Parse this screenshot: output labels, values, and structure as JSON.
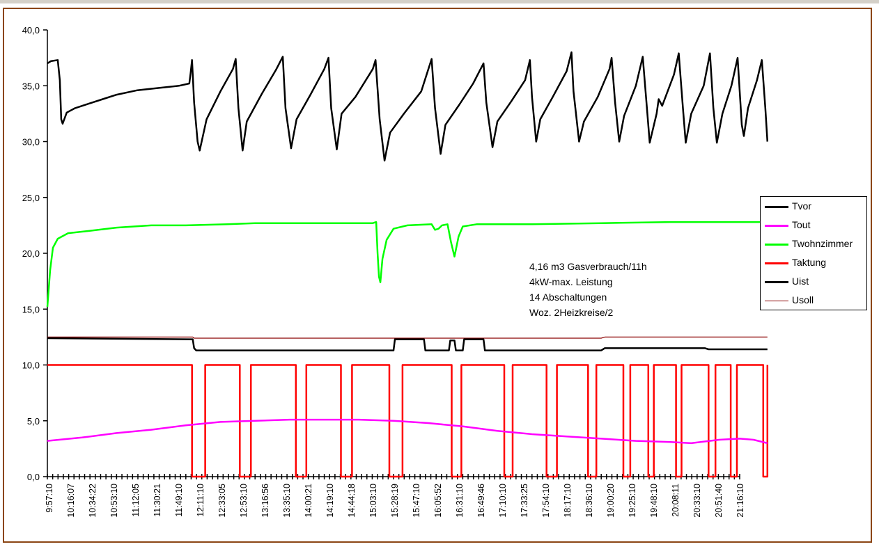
{
  "chart_data": {
    "type": "line",
    "ylim": [
      0,
      40
    ],
    "y_ticks": [
      "0,0",
      "5,0",
      "10,0",
      "15,0",
      "20,0",
      "25,0",
      "30,0",
      "35,0",
      "40,0"
    ],
    "x_tick_labels": [
      "9:57:10",
      "10:16:07",
      "10:34:22",
      "10:53:10",
      "11:12:05",
      "11:30:21",
      "11:49:10",
      "12:11:10",
      "12:33:05",
      "12:53:10",
      "13:16:56",
      "13:35:10",
      "14:00:21",
      "14:19:10",
      "14:44:18",
      "15:03:10",
      "15:28:19",
      "15:47:10",
      "16:05:52",
      "16:31:10",
      "16:49:46",
      "17:10:10",
      "17:33:25",
      "17:54:10",
      "18:17:10",
      "18:36:10",
      "19:00:20",
      "19:25:10",
      "19:48:10",
      "20:08:11",
      "20:33:10",
      "20:51:40",
      "21:16:10"
    ],
    "x_range": [
      0,
      1000
    ],
    "grid": false,
    "legend_position": "right",
    "series": [
      {
        "name": "Tvor",
        "color": "#000000",
        "points": [
          [
            0,
            37.0
          ],
          [
            5,
            37.2
          ],
          [
            15,
            37.3
          ],
          [
            18,
            35.5
          ],
          [
            20,
            32.0
          ],
          [
            22,
            31.6
          ],
          [
            28,
            32.6
          ],
          [
            40,
            33.0
          ],
          [
            60,
            33.4
          ],
          [
            80,
            33.8
          ],
          [
            100,
            34.2
          ],
          [
            130,
            34.6
          ],
          [
            160,
            34.8
          ],
          [
            190,
            35.0
          ],
          [
            205,
            35.2
          ],
          [
            207,
            36.2
          ],
          [
            209,
            37.3
          ],
          [
            212,
            33.5
          ],
          [
            217,
            30.0
          ],
          [
            220,
            29.2
          ],
          [
            230,
            32.0
          ],
          [
            250,
            34.5
          ],
          [
            268,
            36.5
          ],
          [
            272,
            37.4
          ],
          [
            276,
            33.0
          ],
          [
            282,
            29.2
          ],
          [
            288,
            31.8
          ],
          [
            310,
            34.3
          ],
          [
            330,
            36.4
          ],
          [
            340,
            37.6
          ],
          [
            344,
            33.0
          ],
          [
            352,
            29.4
          ],
          [
            360,
            32.0
          ],
          [
            380,
            34.2
          ],
          [
            400,
            36.5
          ],
          [
            406,
            37.5
          ],
          [
            410,
            33.0
          ],
          [
            418,
            29.3
          ],
          [
            425,
            32.5
          ],
          [
            445,
            34.0
          ],
          [
            470,
            36.5
          ],
          [
            474,
            37.3
          ],
          [
            480,
            32.0
          ],
          [
            487,
            28.3
          ],
          [
            495,
            30.8
          ],
          [
            515,
            32.5
          ],
          [
            540,
            34.5
          ],
          [
            555,
            37.4
          ],
          [
            560,
            33.0
          ],
          [
            568,
            28.9
          ],
          [
            575,
            31.5
          ],
          [
            595,
            33.3
          ],
          [
            615,
            35.2
          ],
          [
            630,
            37.0
          ],
          [
            634,
            33.5
          ],
          [
            643,
            29.5
          ],
          [
            650,
            31.8
          ],
          [
            670,
            33.6
          ],
          [
            690,
            35.5
          ],
          [
            697,
            37.3
          ],
          [
            700,
            34.0
          ],
          [
            706,
            30.0
          ],
          [
            712,
            32.0
          ],
          [
            730,
            34.0
          ],
          [
            750,
            36.3
          ],
          [
            757,
            38.0
          ],
          [
            760,
            34.5
          ],
          [
            768,
            30.0
          ],
          [
            775,
            31.8
          ],
          [
            795,
            34.0
          ],
          [
            812,
            36.5
          ],
          [
            815,
            37.5
          ],
          [
            820,
            33.5
          ],
          [
            826,
            30.0
          ],
          [
            833,
            32.3
          ],
          [
            850,
            35.0
          ],
          [
            860,
            37.6
          ],
          [
            866,
            33.0
          ],
          [
            870,
            29.9
          ],
          [
            880,
            32.5
          ],
          [
            883,
            33.8
          ],
          [
            888,
            33.2
          ],
          [
            905,
            36.0
          ],
          [
            912,
            37.9
          ],
          [
            918,
            33.0
          ],
          [
            922,
            29.9
          ],
          [
            930,
            32.5
          ],
          [
            948,
            35.0
          ],
          [
            957,
            37.9
          ],
          [
            962,
            33.0
          ],
          [
            967,
            29.9
          ],
          [
            975,
            32.5
          ],
          [
            988,
            35.0
          ],
          [
            997,
            37.5
          ],
          [
            1000,
            34.5
          ],
          [
            1003,
            31.5
          ],
          [
            1006,
            30.5
          ],
          [
            1012,
            33.0
          ],
          [
            1025,
            35.5
          ],
          [
            1032,
            37.3
          ],
          [
            1037,
            33.0
          ],
          [
            1040,
            30.0
          ]
        ]
      },
      {
        "name": "Tout",
        "color": "#ff00ff",
        "points": [
          [
            0,
            3.2
          ],
          [
            50,
            3.5
          ],
          [
            100,
            3.9
          ],
          [
            150,
            4.2
          ],
          [
            200,
            4.6
          ],
          [
            250,
            4.9
          ],
          [
            300,
            5.0
          ],
          [
            350,
            5.1
          ],
          [
            400,
            5.1
          ],
          [
            450,
            5.1
          ],
          [
            500,
            5.0
          ],
          [
            550,
            4.8
          ],
          [
            600,
            4.5
          ],
          [
            650,
            4.1
          ],
          [
            700,
            3.8
          ],
          [
            750,
            3.6
          ],
          [
            800,
            3.4
          ],
          [
            850,
            3.2
          ],
          [
            900,
            3.1
          ],
          [
            930,
            3.0
          ],
          [
            970,
            3.3
          ],
          [
            1000,
            3.4
          ],
          [
            1020,
            3.3
          ],
          [
            1040,
            3.0
          ]
        ]
      },
      {
        "name": "Twohnzimmer",
        "color": "#00ff00",
        "points": [
          [
            0,
            15.2
          ],
          [
            4,
            18.5
          ],
          [
            8,
            20.5
          ],
          [
            15,
            21.3
          ],
          [
            30,
            21.8
          ],
          [
            60,
            22.0
          ],
          [
            100,
            22.3
          ],
          [
            150,
            22.5
          ],
          [
            200,
            22.5
          ],
          [
            260,
            22.6
          ],
          [
            300,
            22.7
          ],
          [
            400,
            22.7
          ],
          [
            470,
            22.7
          ],
          [
            475,
            22.8
          ],
          [
            477,
            20.0
          ],
          [
            479,
            17.9
          ],
          [
            481,
            17.4
          ],
          [
            484,
            19.5
          ],
          [
            490,
            21.2
          ],
          [
            500,
            22.2
          ],
          [
            520,
            22.5
          ],
          [
            555,
            22.6
          ],
          [
            560,
            22.1
          ],
          [
            565,
            22.2
          ],
          [
            570,
            22.5
          ],
          [
            578,
            22.6
          ],
          [
            583,
            21.0
          ],
          [
            588,
            19.7
          ],
          [
            594,
            21.5
          ],
          [
            600,
            22.4
          ],
          [
            620,
            22.6
          ],
          [
            700,
            22.6
          ],
          [
            800,
            22.7
          ],
          [
            900,
            22.8
          ],
          [
            1000,
            22.8
          ],
          [
            1040,
            22.8
          ]
        ]
      },
      {
        "name": "Taktung",
        "color": "#ff0000",
        "points": [
          [
            0,
            10
          ],
          [
            209,
            10
          ],
          [
            209,
            0
          ],
          [
            228,
            0
          ],
          [
            228,
            10
          ],
          [
            278,
            10
          ],
          [
            278,
            0
          ],
          [
            294,
            0
          ],
          [
            294,
            10
          ],
          [
            359,
            10
          ],
          [
            359,
            0
          ],
          [
            374,
            0
          ],
          [
            374,
            10
          ],
          [
            424,
            10
          ],
          [
            424,
            0
          ],
          [
            440,
            0
          ],
          [
            440,
            10
          ],
          [
            494,
            10
          ],
          [
            494,
            0
          ],
          [
            513,
            0
          ],
          [
            513,
            10
          ],
          [
            584,
            10
          ],
          [
            584,
            0
          ],
          [
            598,
            0
          ],
          [
            598,
            10
          ],
          [
            660,
            10
          ],
          [
            660,
            0
          ],
          [
            672,
            0
          ],
          [
            672,
            10
          ],
          [
            721,
            10
          ],
          [
            721,
            0
          ],
          [
            736,
            0
          ],
          [
            736,
            10
          ],
          [
            781,
            10
          ],
          [
            781,
            0
          ],
          [
            793,
            0
          ],
          [
            793,
            10
          ],
          [
            832,
            10
          ],
          [
            832,
            0
          ],
          [
            842,
            0
          ],
          [
            842,
            10
          ],
          [
            868,
            10
          ],
          [
            868,
            0
          ],
          [
            876,
            0
          ],
          [
            876,
            10
          ],
          [
            908,
            10
          ],
          [
            908,
            0
          ],
          [
            916,
            0
          ],
          [
            916,
            10
          ],
          [
            955,
            10
          ],
          [
            955,
            0
          ],
          [
            965,
            0
          ],
          [
            965,
            10
          ],
          [
            987,
            10
          ],
          [
            987,
            0
          ],
          [
            996,
            0
          ],
          [
            996,
            10
          ],
          [
            1034,
            10
          ],
          [
            1034,
            0
          ],
          [
            1040,
            0
          ],
          [
            1040,
            10
          ]
        ]
      },
      {
        "name": "Uist",
        "color": "#000000",
        "points": [
          [
            0,
            12.4
          ],
          [
            205,
            12.3
          ],
          [
            210,
            12.3
          ],
          [
            212,
            11.5
          ],
          [
            215,
            11.3
          ],
          [
            250,
            11.3
          ],
          [
            500,
            11.3
          ],
          [
            502,
            12.3
          ],
          [
            544,
            12.3
          ],
          [
            546,
            11.3
          ],
          [
            580,
            11.3
          ],
          [
            582,
            12.2
          ],
          [
            588,
            12.2
          ],
          [
            590,
            11.3
          ],
          [
            600,
            11.3
          ],
          [
            602,
            12.3
          ],
          [
            630,
            12.3
          ],
          [
            632,
            11.3
          ],
          [
            700,
            11.3
          ],
          [
            800,
            11.3
          ],
          [
            805,
            11.5
          ],
          [
            950,
            11.5
          ],
          [
            955,
            11.4
          ],
          [
            1040,
            11.4
          ]
        ]
      },
      {
        "name": "Usoll",
        "color": "#8b0000",
        "points": [
          [
            0,
            12.5
          ],
          [
            210,
            12.5
          ],
          [
            212,
            12.4
          ],
          [
            800,
            12.4
          ],
          [
            805,
            12.5
          ],
          [
            1040,
            12.5
          ]
        ]
      }
    ]
  },
  "annotation": {
    "line1": "4,16 m3 Gasverbrauch/11h",
    "line2": "4kW-max. Leistung",
    "line3": "14 Abschaltungen",
    "line4": "Woz. 2Heizkreise/2"
  }
}
